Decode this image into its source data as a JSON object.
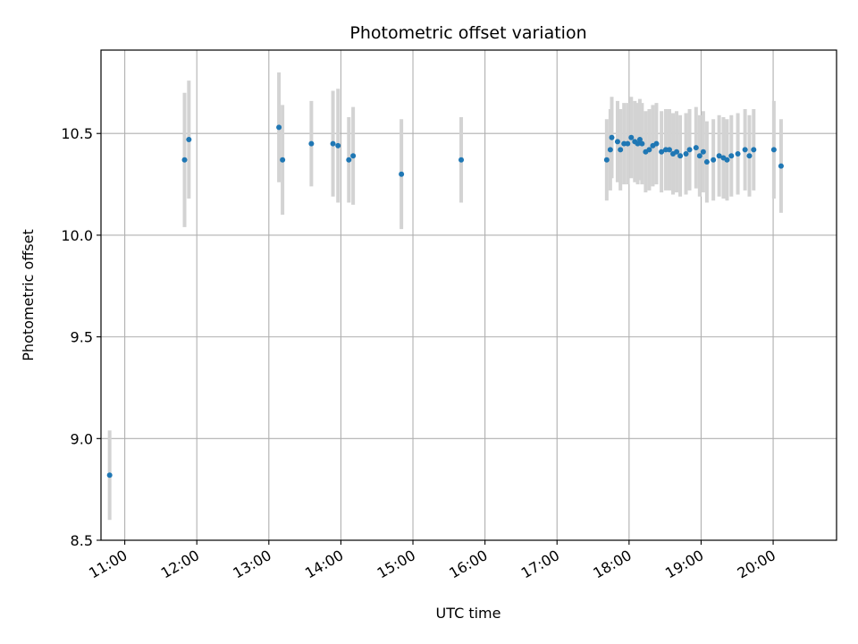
{
  "chart_data": {
    "type": "scatter",
    "title": "Photometric offset variation",
    "xlabel": "UTC time",
    "ylabel": "Photometric offset",
    "xlim": [
      10.67,
      20.88
    ],
    "ylim": [
      8.5,
      10.91
    ],
    "grid": true,
    "x_ticks": [
      {
        "value": 11,
        "label": "11:00"
      },
      {
        "value": 12,
        "label": "12:00"
      },
      {
        "value": 13,
        "label": "13:00"
      },
      {
        "value": 14,
        "label": "14:00"
      },
      {
        "value": 15,
        "label": "15:00"
      },
      {
        "value": 16,
        "label": "16:00"
      },
      {
        "value": 17,
        "label": "17:00"
      },
      {
        "value": 18,
        "label": "18:00"
      },
      {
        "value": 19,
        "label": "19:00"
      },
      {
        "value": 20,
        "label": "20:00"
      }
    ],
    "y_ticks": [
      {
        "value": 8.5,
        "label": "8.5"
      },
      {
        "value": 9.0,
        "label": "9.0"
      },
      {
        "value": 9.5,
        "label": "9.5"
      },
      {
        "value": 10.0,
        "label": "10.0"
      },
      {
        "value": 10.5,
        "label": "10.5"
      }
    ],
    "colors": {
      "marker": "#1f77b4",
      "errorbar": "#d3d3d3",
      "grid": "#b0b0b0",
      "axes": "#000000"
    },
    "series": [
      {
        "name": "offset",
        "x_hours": [
          10.79,
          11.83,
          11.89,
          13.14,
          13.19,
          13.59,
          13.89,
          13.96,
          14.11,
          14.17,
          14.84,
          15.67,
          17.69,
          17.74,
          17.76,
          17.84,
          17.88,
          17.93,
          17.98,
          18.03,
          18.08,
          18.12,
          18.15,
          18.18,
          18.23,
          18.28,
          18.33,
          18.38,
          18.45,
          18.51,
          18.56,
          18.61,
          18.66,
          18.71,
          18.79,
          18.84,
          18.93,
          18.98,
          19.03,
          19.08,
          19.17,
          19.25,
          19.31,
          19.36,
          19.42,
          19.51,
          19.61,
          19.67,
          19.73,
          20.01,
          20.11
        ],
        "y": [
          8.82,
          10.37,
          10.47,
          10.53,
          10.37,
          10.45,
          10.45,
          10.44,
          10.37,
          10.39,
          10.3,
          10.37,
          10.37,
          10.42,
          10.48,
          10.46,
          10.42,
          10.45,
          10.45,
          10.48,
          10.46,
          10.45,
          10.47,
          10.45,
          10.41,
          10.42,
          10.44,
          10.45,
          10.41,
          10.42,
          10.42,
          10.4,
          10.41,
          10.39,
          10.4,
          10.42,
          10.43,
          10.39,
          10.41,
          10.36,
          10.37,
          10.39,
          10.38,
          10.37,
          10.39,
          10.4,
          10.42,
          10.39,
          10.42,
          10.42,
          10.34
        ],
        "err": [
          0.22,
          0.33,
          0.29,
          0.27,
          0.27,
          0.21,
          0.26,
          0.28,
          0.21,
          0.24,
          0.27,
          0.21,
          0.2,
          0.2,
          0.2,
          0.2,
          0.2,
          0.2,
          0.2,
          0.2,
          0.2,
          0.2,
          0.2,
          0.2,
          0.2,
          0.2,
          0.2,
          0.2,
          0.2,
          0.2,
          0.2,
          0.2,
          0.2,
          0.2,
          0.2,
          0.2,
          0.2,
          0.2,
          0.2,
          0.2,
          0.2,
          0.2,
          0.2,
          0.2,
          0.2,
          0.2,
          0.2,
          0.2,
          0.2,
          0.24,
          0.23
        ]
      }
    ]
  }
}
